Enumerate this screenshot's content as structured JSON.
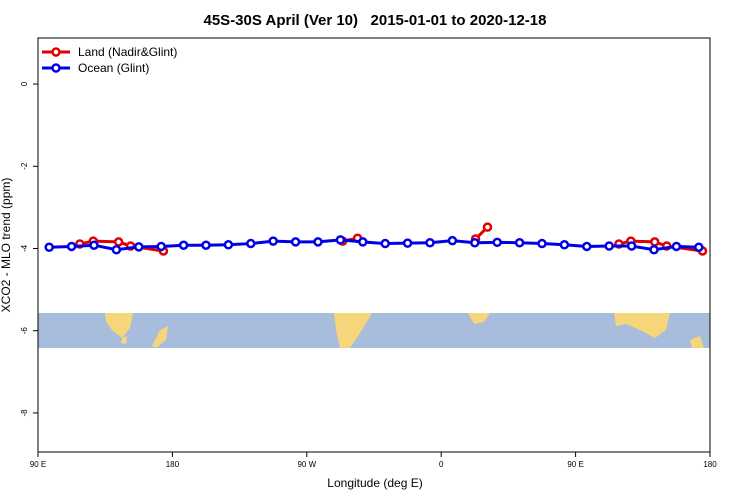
{
  "chart_data": {
    "type": "line",
    "title": "45S-30S April (Ver 10)   2015-01-01 to 2020-12-18",
    "x_label": "Longitude (deg E)",
    "y_label": "XCO2 - MLO trend (ppm)",
    "xlim": [
      90,
      540
    ],
    "ylim": [
      -8.95,
      1.12
    ],
    "xticks": [
      {
        "value": 90,
        "label": "90 E"
      },
      180,
      {
        "value": 270,
        "label": "90 W"
      },
      {
        "value": 360,
        "label": "0"
      },
      {
        "value": 450,
        "label": "90 E"
      },
      {
        "value": 540,
        "label": "180"
      }
    ],
    "yticks": [
      0,
      -2,
      -4,
      -6,
      -8
    ],
    "legend": "top-left",
    "series": [
      {
        "name": "Land (Nadir&Glint)",
        "color": "#e00000",
        "x": [
          118,
          127,
          144,
          152,
          174,
          null,
          294,
          304,
          null,
          383,
          391,
          null,
          479,
          487,
          503,
          511,
          535
        ],
        "values": [
          -3.89,
          -3.82,
          -3.84,
          -3.94,
          -4.06,
          null,
          -3.82,
          -3.75,
          null,
          -3.77,
          -3.48,
          null,
          -3.89,
          -3.82,
          -3.84,
          -3.94,
          -4.06
        ]
      },
      {
        "name": "Ocean (Glint)",
        "color": "#0000e6",
        "x": [
          97.5,
          112.5,
          127.5,
          142.5,
          157.5,
          172.5,
          187.5,
          202.5,
          217.5,
          232.5,
          247.5,
          262.5,
          277.5,
          292.5,
          307.5,
          322.5,
          337.5,
          352.5,
          367.5,
          382.5,
          397.5,
          412.5,
          427.5,
          442.5,
          457.5,
          472.5,
          487.5,
          502.5,
          517.5,
          532.5
        ],
        "values": [
          -3.97,
          -3.95,
          -3.92,
          -4.03,
          -3.96,
          -3.95,
          -3.92,
          -3.92,
          -3.91,
          -3.88,
          -3.82,
          -3.84,
          -3.84,
          -3.79,
          -3.84,
          -3.88,
          -3.87,
          -3.86,
          -3.81,
          -3.86,
          -3.85,
          -3.86,
          -3.88,
          -3.91,
          -3.95,
          -3.94,
          -3.94,
          -4.03,
          -3.95,
          -3.97
        ]
      }
    ]
  }
}
